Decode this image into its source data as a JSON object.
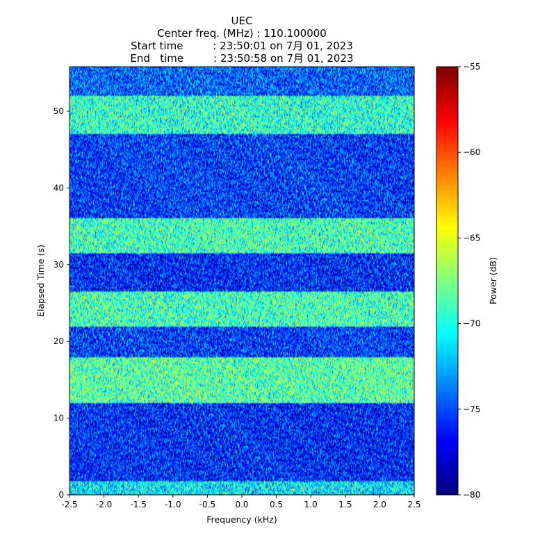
{
  "chart_data": {
    "type": "heatmap",
    "title_lines": [
      "UEC",
      "Center freq. (MHz) : 110.100000",
      "Start time         : 23:50:01 on 7月 01, 2023",
      "End   time         : 23:50:58 on 7月 01, 2023"
    ],
    "xlabel": "Frequency (kHz)",
    "ylabel": "Elapsed Time (s)",
    "xlim": [
      -2.5,
      2.5
    ],
    "ylim": [
      0,
      55.8
    ],
    "x_ticks": [
      -2.5,
      -2.0,
      -1.5,
      -1.0,
      -0.5,
      0.0,
      0.5,
      1.0,
      1.5,
      2.0,
      2.5
    ],
    "x_tick_labels": [
      "-2.5",
      "-2.0",
      "-1.5",
      "-1.0",
      "-0.5",
      "0.0",
      "0.5",
      "1.0",
      "1.5",
      "2.0",
      "2.5"
    ],
    "y_ticks": [
      0,
      10,
      20,
      30,
      40,
      50
    ],
    "y_tick_labels": [
      "0",
      "10",
      "20",
      "30",
      "40",
      "50"
    ],
    "colorbar": {
      "label": "Power (dB)",
      "colormap": "jet",
      "vmin": -80,
      "vmax": -55,
      "ticks": [
        -80,
        -75,
        -70,
        -65,
        -60,
        -55
      ],
      "tick_labels": [
        "−80",
        "−75",
        "−70",
        "−65",
        "−60",
        "−55"
      ]
    },
    "time_bands_dB": [
      {
        "t_start": 0.0,
        "t_end": 1.8,
        "mean_power": -71.0
      },
      {
        "t_start": 1.8,
        "t_end": 12.0,
        "mean_power": -76.0
      },
      {
        "t_start": 12.0,
        "t_end": 18.0,
        "mean_power": -68.5
      },
      {
        "t_start": 18.0,
        "t_end": 22.0,
        "mean_power": -75.5
      },
      {
        "t_start": 22.0,
        "t_end": 26.5,
        "mean_power": -69.0
      },
      {
        "t_start": 26.5,
        "t_end": 31.5,
        "mean_power": -76.0
      },
      {
        "t_start": 31.5,
        "t_end": 36.0,
        "mean_power": -69.0
      },
      {
        "t_start": 36.0,
        "t_end": 47.0,
        "mean_power": -75.5
      },
      {
        "t_start": 47.0,
        "t_end": 52.0,
        "mean_power": -69.5
      },
      {
        "t_start": 52.0,
        "t_end": 55.8,
        "mean_power": -74.5
      }
    ],
    "grid": false
  }
}
